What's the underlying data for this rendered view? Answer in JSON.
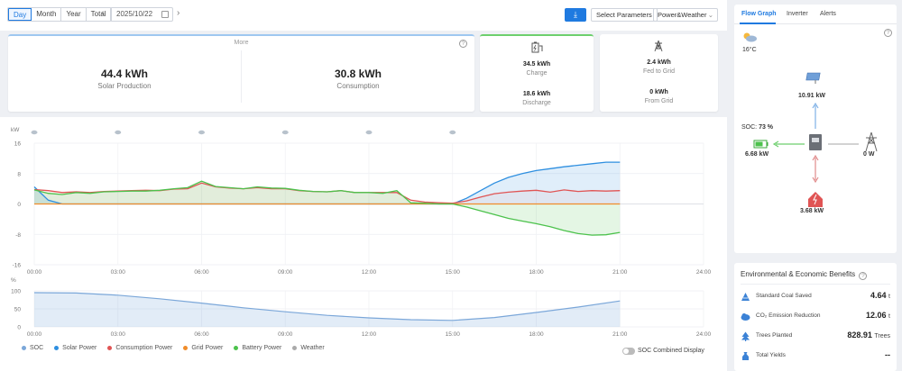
{
  "toolbar": {
    "periods": [
      "Day",
      "Month",
      "Year",
      "Total"
    ],
    "active_period": "Day",
    "date": "2025/10/22",
    "select_params": "Select Parameters",
    "view_select": "Power&Weather"
  },
  "summary": {
    "more_label": "More",
    "solar_value": "44.4 kWh",
    "solar_label": "Solar Production",
    "consumption_value": "30.8 kWh",
    "consumption_label": "Consumption",
    "charge_value": "34.5 kWh",
    "charge_label": "Charge",
    "discharge_value": "18.6 kWh",
    "discharge_label": "Discharge",
    "fed_value": "2.4 kWh",
    "fed_label": "Fed to Grid",
    "from_value": "0 kWh",
    "from_label": "From Grid"
  },
  "colors": {
    "solar": "#2e8fe0",
    "consumption": "#e05454",
    "grid": "#f08c2a",
    "battery": "#4cc24c",
    "soc": "#7ba7d9",
    "weather": "#aaaaaa",
    "accent": "#1f7ae0"
  },
  "chart_data": [
    {
      "type": "line",
      "ylabel": "kW",
      "ylim": [
        -16,
        16
      ],
      "yticks": [
        "16",
        "8",
        "0",
        "-8",
        "-16"
      ],
      "xticks": [
        "00:00",
        "03:00",
        "06:00",
        "09:00",
        "12:00",
        "15:00",
        "18:00",
        "21:00",
        "24:00"
      ],
      "x": [
        "00:00",
        "00:30",
        "01:00",
        "01:30",
        "02:00",
        "02:30",
        "03:00",
        "03:30",
        "04:00",
        "04:30",
        "05:00",
        "05:30",
        "06:00",
        "06:30",
        "07:00",
        "07:30",
        "08:00",
        "08:30",
        "09:00",
        "09:30",
        "10:00",
        "10:30",
        "11:00",
        "11:30",
        "12:00",
        "12:30",
        "13:00",
        "13:30",
        "14:00",
        "14:30",
        "15:00",
        "15:30",
        "16:00",
        "16:30",
        "17:00",
        "17:30",
        "18:00",
        "18:30",
        "19:00",
        "19:30",
        "20:00",
        "20:30",
        "21:00"
      ],
      "series": [
        {
          "name": "Solar Power",
          "values": [
            4.5,
            1,
            0,
            0,
            0,
            0,
            0,
            0,
            0,
            0,
            0,
            0,
            0,
            0,
            0,
            0,
            0,
            0,
            0,
            0,
            0,
            0,
            0,
            0,
            0,
            0,
            0,
            0,
            0,
            0,
            0,
            1.5,
            3.5,
            5.5,
            7,
            8,
            8.8,
            9.3,
            9.8,
            10.2,
            10.6,
            11,
            11
          ]
        },
        {
          "name": "Consumption Power",
          "values": [
            3.8,
            3.5,
            3,
            3.2,
            3,
            3.3,
            3.4,
            3.5,
            3.6,
            3.5,
            3.9,
            4,
            5.5,
            4.5,
            4.2,
            4,
            4.3,
            4,
            4,
            3.5,
            3.3,
            3.2,
            3.5,
            3,
            3,
            3,
            3,
            1,
            0.5,
            0.3,
            0.2,
            0.8,
            1.8,
            2.7,
            3.1,
            3.4,
            3.6,
            3.1,
            3.7,
            3.3,
            3.5,
            3.4,
            3.5
          ]
        },
        {
          "name": "Grid Power",
          "values": [
            0,
            0,
            0,
            0,
            0,
            0,
            0,
            0,
            0,
            0,
            0,
            0,
            0,
            0,
            0,
            0,
            0,
            0,
            0,
            0,
            0,
            0,
            0,
            0,
            0,
            0,
            0,
            0,
            0,
            0,
            0,
            0,
            0,
            0,
            0,
            0,
            0,
            0,
            0,
            0,
            0,
            0,
            0
          ]
        },
        {
          "name": "Battery Power",
          "values": [
            3.7,
            2.8,
            2.5,
            3,
            2.8,
            3.2,
            3.3,
            3.4,
            3.4,
            3.6,
            4,
            4.3,
            6,
            4.6,
            4.3,
            4,
            4.5,
            4.2,
            4.1,
            3.6,
            3.3,
            3.2,
            3.5,
            3,
            3,
            2.8,
            3.5,
            0.3,
            0.2,
            0,
            0,
            -0.8,
            -1.8,
            -2.8,
            -3.8,
            -4.5,
            -5.2,
            -6,
            -7,
            -7.8,
            -8.2,
            -8.1,
            -7.5
          ]
        }
      ]
    },
    {
      "type": "area",
      "ylabel": "%",
      "ylim": [
        0,
        100
      ],
      "yticks": [
        "100",
        "50",
        "0"
      ],
      "xticks": [
        "00:00",
        "03:00",
        "06:00",
        "09:00",
        "12:00",
        "15:00",
        "18:00",
        "21:00",
        "24:00"
      ],
      "x": [
        "00:00",
        "01:30",
        "03:00",
        "04:30",
        "06:00",
        "07:30",
        "09:00",
        "10:30",
        "12:00",
        "13:30",
        "15:00",
        "16:30",
        "18:00",
        "19:30",
        "21:00"
      ],
      "series": [
        {
          "name": "SOC",
          "values": [
            95,
            94,
            88,
            78,
            66,
            53,
            42,
            32,
            25,
            20,
            18,
            26,
            40,
            55,
            72
          ]
        }
      ]
    }
  ],
  "legend": [
    "SOC",
    "Solar Power",
    "Consumption Power",
    "Grid Power",
    "Battery Power",
    "Weather"
  ],
  "soc_toggle_label": "SOC Combined Display",
  "flow": {
    "tabs": [
      "Flow Graph",
      "Inverter",
      "Alerts"
    ],
    "temperature": "16°C",
    "solar": "10.91 kW",
    "soc_label": "SOC:",
    "soc_value": "73 %",
    "battery": "6.68 kW",
    "grid": "0 W",
    "load": "3.68 kW"
  },
  "env": {
    "title": "Environmental & Economic Benefits",
    "rows": [
      {
        "label": "Standard Coal Saved",
        "value": "4.64",
        "unit": "t"
      },
      {
        "label": "CO₂ Emission Reduction",
        "value": "12.06",
        "unit": "t"
      },
      {
        "label": "Trees Planted",
        "value": "828.91",
        "unit": "Trees"
      },
      {
        "label": "Total Yields",
        "value": "--",
        "unit": ""
      }
    ]
  }
}
